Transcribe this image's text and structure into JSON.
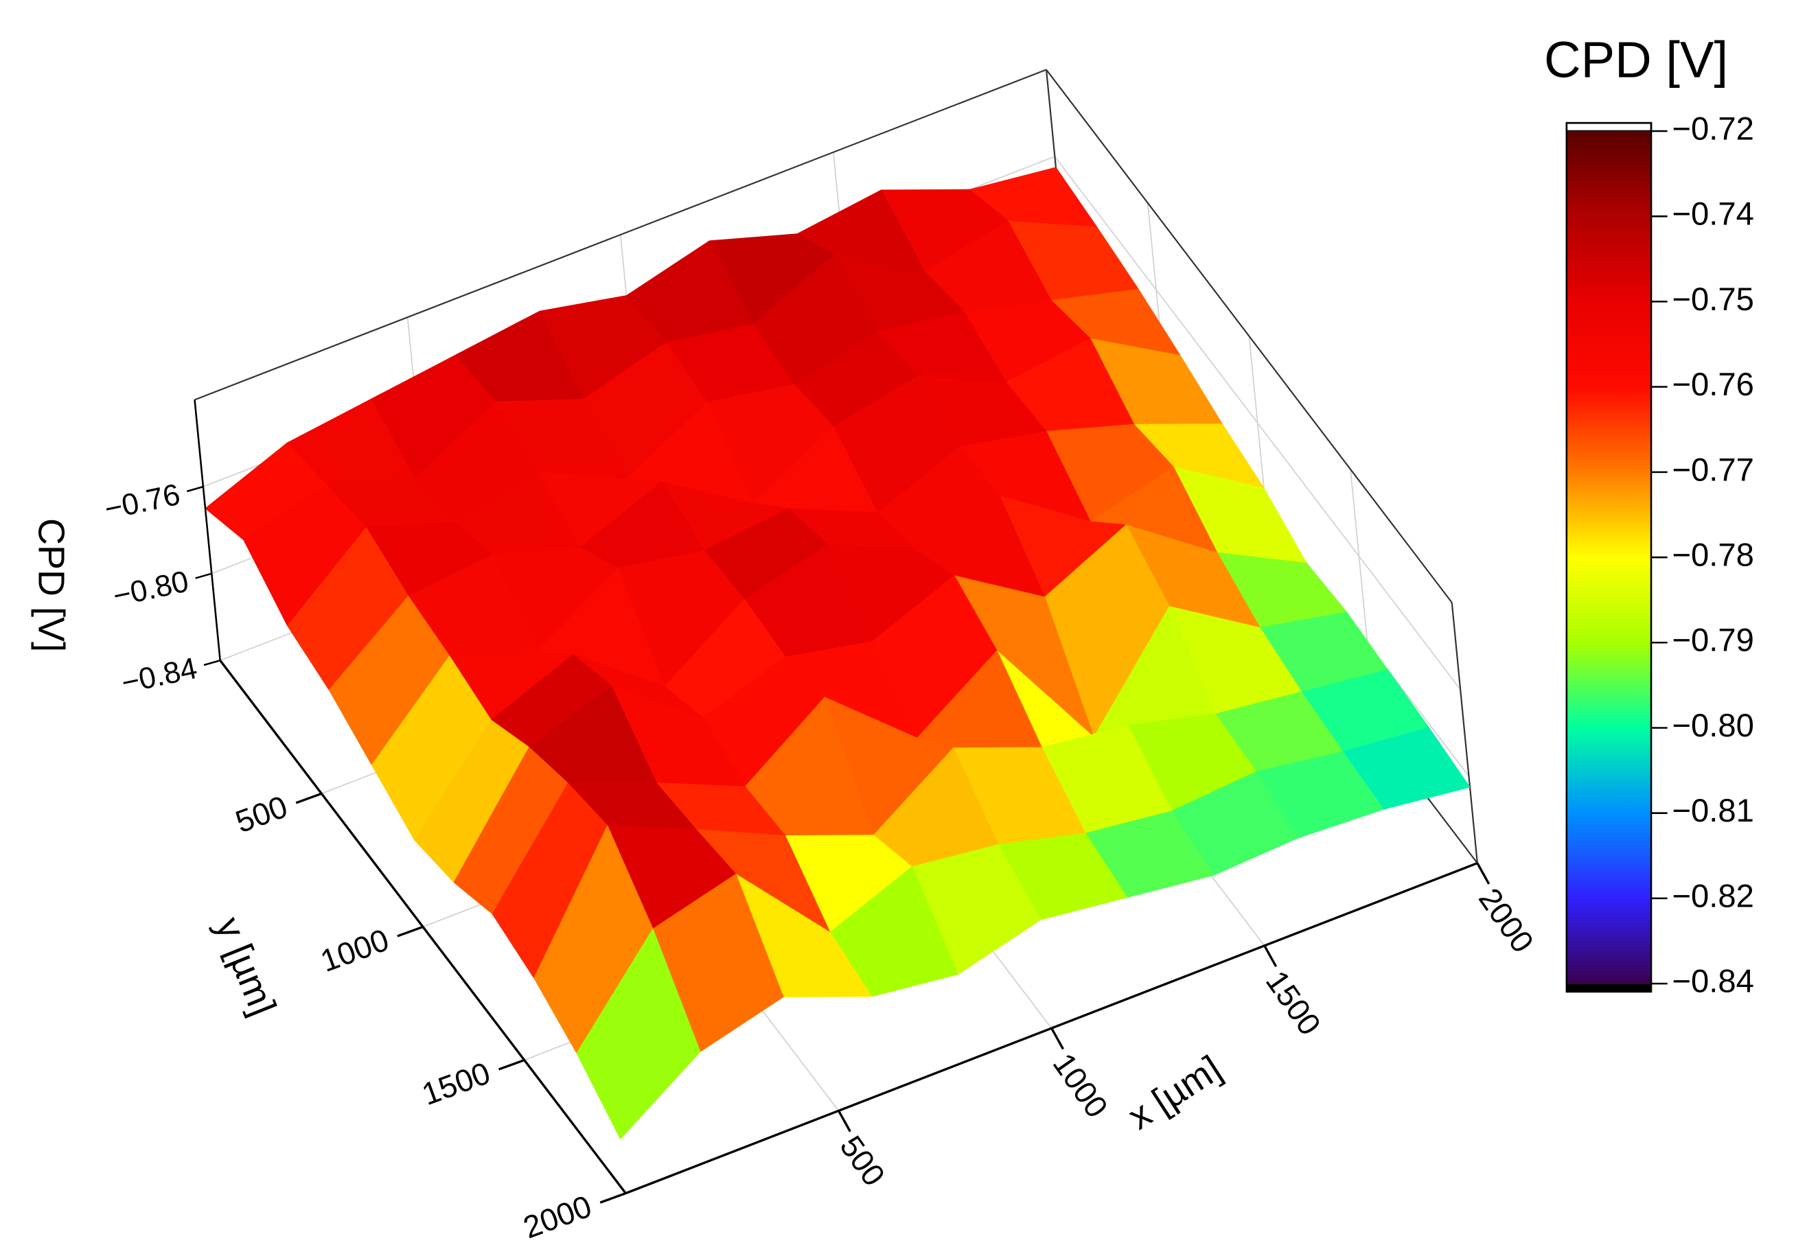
{
  "chart_data": {
    "type": "surface3d",
    "xlabel": "x [µm]",
    "ylabel": "y [µm]",
    "zlabel": "CPD [V]",
    "x": [
      0,
      200,
      400,
      600,
      800,
      1000,
      1200,
      1400,
      1600,
      1800,
      2000
    ],
    "y": [
      0,
      200,
      400,
      600,
      800,
      1000,
      1200,
      1400,
      1600,
      1800,
      2000
    ],
    "z": [
      [
        -0.77,
        -0.755,
        -0.75,
        -0.745,
        -0.74,
        -0.748,
        -0.738,
        -0.75,
        -0.745,
        -0.76,
        -0.765
      ],
      [
        -0.76,
        -0.75,
        -0.762,
        -0.742,
        -0.756,
        -0.745,
        -0.752,
        -0.735,
        -0.758,
        -0.75,
        -0.768
      ],
      [
        -0.775,
        -0.745,
        -0.758,
        -0.75,
        -0.768,
        -0.748,
        -0.755,
        -0.746,
        -0.752,
        -0.762,
        -0.772
      ],
      [
        -0.78,
        -0.752,
        -0.748,
        -0.76,
        -0.745,
        -0.77,
        -0.75,
        -0.742,
        -0.76,
        -0.755,
        -0.778
      ],
      [
        -0.79,
        -0.755,
        -0.768,
        -0.745,
        -0.752,
        -0.748,
        -0.765,
        -0.75,
        -0.758,
        -0.77,
        -0.785
      ],
      [
        -0.8,
        -0.76,
        -0.745,
        -0.775,
        -0.75,
        -0.74,
        -0.758,
        -0.748,
        -0.775,
        -0.765,
        -0.79
      ],
      [
        -0.795,
        -0.748,
        -0.735,
        -0.765,
        -0.752,
        -0.76,
        -0.745,
        -0.77,
        -0.752,
        -0.78,
        -0.8
      ],
      [
        -0.785,
        -0.74,
        -0.755,
        -0.772,
        -0.746,
        -0.78,
        -0.755,
        -0.81,
        -0.765,
        -0.79,
        -0.798
      ],
      [
        -0.79,
        -0.735,
        -0.752,
        -0.77,
        -0.785,
        -0.76,
        -0.775,
        -0.78,
        -0.79,
        -0.795,
        -0.8
      ],
      [
        -0.8,
        -0.758,
        -0.748,
        -0.79,
        -0.775,
        -0.78,
        -0.79,
        -0.795,
        -0.792,
        -0.798,
        -0.802
      ],
      [
        -0.815,
        -0.79,
        -0.78,
        -0.795,
        -0.8,
        -0.79,
        -0.795,
        -0.8,
        -0.798,
        -0.8,
        -0.805
      ]
    ],
    "xlim": [
      0,
      2000
    ],
    "ylim": [
      0,
      2000
    ],
    "zlim": [
      -0.84,
      -0.72
    ],
    "xticks": [
      500,
      1000,
      1500,
      2000
    ],
    "yticks": [
      500,
      1000,
      1500,
      2000
    ],
    "zticks": [
      {
        "value": -0.76,
        "label": "−0.76"
      },
      {
        "value": -0.8,
        "label": "−0.80"
      },
      {
        "value": -0.84,
        "label": "−0.84"
      }
    ],
    "grid": true,
    "colorbar": {
      "title": "CPD [V]",
      "levels": [
        {
          "value": -0.72,
          "label": "−0.72",
          "color": "#5a0000"
        },
        {
          "value": -0.74,
          "label": "−0.74",
          "color": "#b00000"
        },
        {
          "value": -0.75,
          "label": "−0.75",
          "color": "#e80000"
        },
        {
          "value": -0.76,
          "label": "−0.76",
          "color": "#ff0a00"
        },
        {
          "value": -0.77,
          "label": "−0.77",
          "color": "#ff7a00"
        },
        {
          "value": -0.78,
          "label": "−0.78",
          "color": "#ffff00"
        },
        {
          "value": -0.79,
          "label": "−0.79",
          "color": "#a8ff00"
        },
        {
          "value": -0.8,
          "label": "−0.80",
          "color": "#00ffa0"
        },
        {
          "value": -0.81,
          "label": "−0.81",
          "color": "#0090ff"
        },
        {
          "value": -0.82,
          "label": "−0.82",
          "color": "#3020ff"
        },
        {
          "value": -0.84,
          "label": "−0.84",
          "color": "#3a0050"
        }
      ]
    }
  }
}
